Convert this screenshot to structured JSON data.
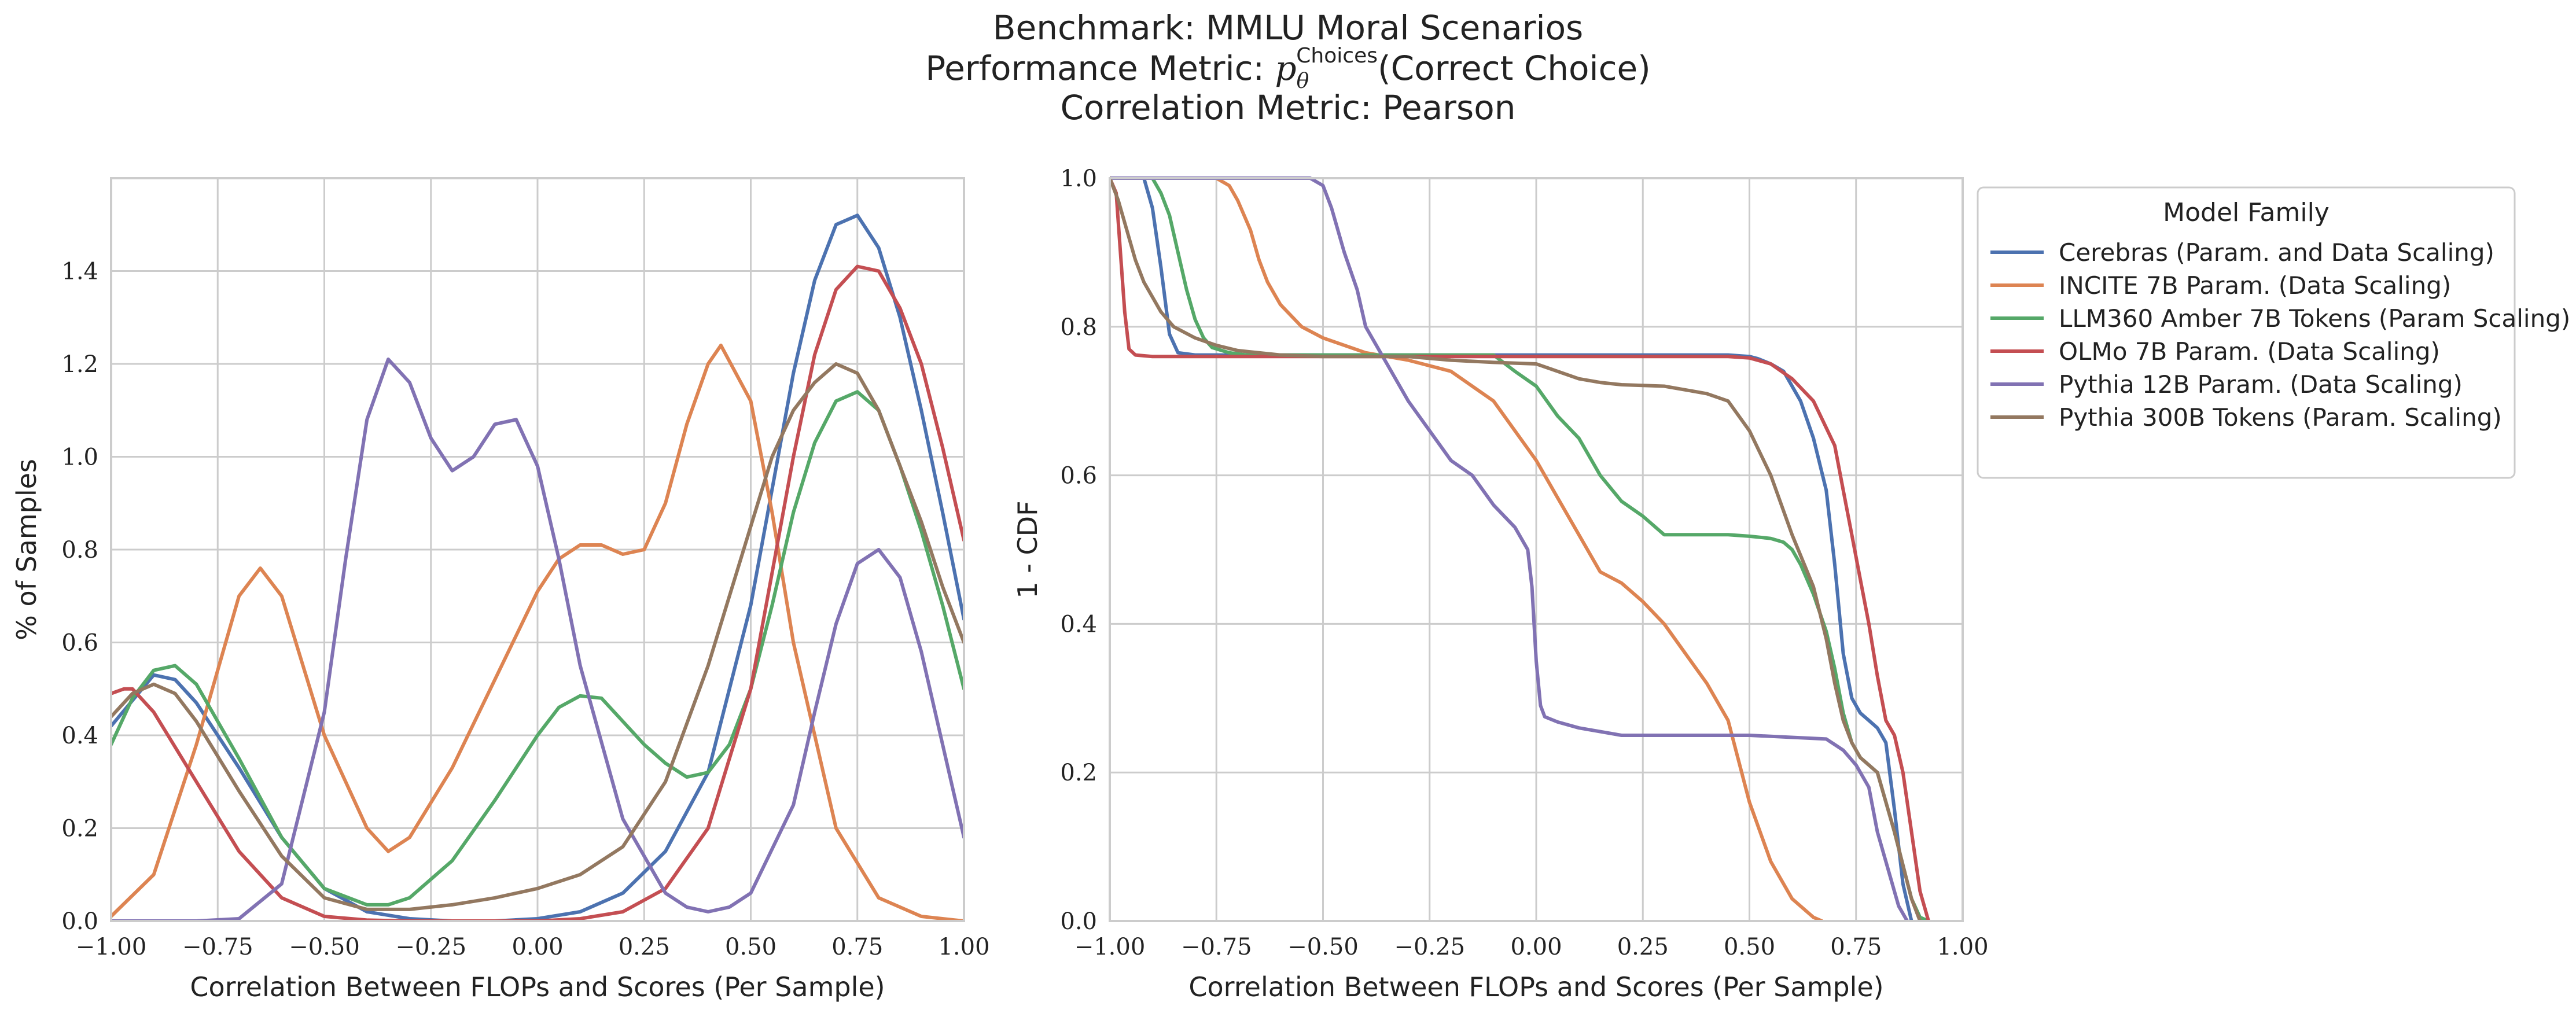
{
  "title": {
    "line1": "Benchmark: MMLU Moral Scenarios",
    "line2_prefix": "Performance Metric: ",
    "line2_symbol": "p",
    "line2_subscript": "θ",
    "line2_superscript": "Choices",
    "line2_suffix": "(Correct Choice)",
    "line3": "Correlation Metric: Pearson"
  },
  "legend": {
    "title": "Model Family",
    "placement": "outside-right"
  },
  "colors": {
    "cerebras": "#4c72b0",
    "incite": "#dd8452",
    "llm360": "#55a868",
    "olmo": "#c44e52",
    "pythia12b": "#8172b3",
    "pythia300b": "#937860"
  },
  "chart_data": [
    {
      "type": "line",
      "xlabel": "Correlation Between FLOPs and Scores (Per Sample)",
      "ylabel": "% of Samples",
      "xlim": [
        -1.0,
        1.0
      ],
      "ylim": [
        0.0,
        1.6
      ],
      "xticks": [
        "−1.00",
        "−0.75",
        "−0.50",
        "−0.25",
        "0.00",
        "0.25",
        "0.50",
        "0.75",
        "1.00"
      ],
      "yticks": [
        "0.0",
        "0.2",
        "0.4",
        "0.6",
        "0.8",
        "1.0",
        "1.2",
        "1.4"
      ],
      "grid": true,
      "series": [
        {
          "name": "Cerebras (Param. and Data Scaling)",
          "color": "#4c72b0",
          "x": [
            -1.0,
            -0.9,
            -0.85,
            -0.8,
            -0.7,
            -0.6,
            -0.5,
            -0.4,
            -0.3,
            -0.2,
            -0.1,
            0.0,
            0.1,
            0.2,
            0.3,
            0.4,
            0.5,
            0.55,
            0.6,
            0.65,
            0.7,
            0.75,
            0.8,
            0.85,
            0.9,
            0.95,
            1.0
          ],
          "y": [
            0.42,
            0.53,
            0.52,
            0.47,
            0.33,
            0.18,
            0.07,
            0.02,
            0.005,
            0.0,
            0.0,
            0.005,
            0.02,
            0.06,
            0.15,
            0.32,
            0.68,
            0.93,
            1.18,
            1.38,
            1.5,
            1.52,
            1.45,
            1.3,
            1.1,
            0.88,
            0.65
          ]
        },
        {
          "name": "INCITE 7B Param. (Data Scaling)",
          "color": "#dd8452",
          "x": [
            -1.0,
            -0.9,
            -0.8,
            -0.7,
            -0.65,
            -0.6,
            -0.5,
            -0.4,
            -0.35,
            -0.3,
            -0.2,
            -0.1,
            0.0,
            0.05,
            0.1,
            0.15,
            0.2,
            0.25,
            0.3,
            0.35,
            0.4,
            0.43,
            0.5,
            0.55,
            0.6,
            0.7,
            0.8,
            0.9,
            1.0
          ],
          "y": [
            0.01,
            0.1,
            0.38,
            0.7,
            0.76,
            0.7,
            0.4,
            0.2,
            0.15,
            0.18,
            0.33,
            0.52,
            0.71,
            0.78,
            0.81,
            0.81,
            0.79,
            0.8,
            0.9,
            1.07,
            1.2,
            1.24,
            1.12,
            0.88,
            0.6,
            0.2,
            0.05,
            0.01,
            0.0
          ]
        },
        {
          "name": "LLM360 Amber 7B Tokens (Param Scaling)",
          "color": "#55a868",
          "x": [
            -1.0,
            -0.95,
            -0.9,
            -0.85,
            -0.8,
            -0.7,
            -0.6,
            -0.5,
            -0.4,
            -0.35,
            -0.3,
            -0.2,
            -0.1,
            0.0,
            0.05,
            0.1,
            0.15,
            0.2,
            0.25,
            0.3,
            0.35,
            0.4,
            0.45,
            0.5,
            0.55,
            0.6,
            0.65,
            0.7,
            0.75,
            0.8,
            0.85,
            0.9,
            0.95,
            1.0
          ],
          "y": [
            0.38,
            0.48,
            0.54,
            0.55,
            0.51,
            0.35,
            0.18,
            0.07,
            0.035,
            0.035,
            0.05,
            0.13,
            0.26,
            0.4,
            0.46,
            0.485,
            0.48,
            0.43,
            0.38,
            0.34,
            0.31,
            0.32,
            0.38,
            0.5,
            0.68,
            0.88,
            1.03,
            1.12,
            1.14,
            1.1,
            0.98,
            0.84,
            0.68,
            0.5
          ]
        },
        {
          "name": "OLMo 7B Param. (Data Scaling)",
          "color": "#c44e52",
          "x": [
            -1.0,
            -0.97,
            -0.95,
            -0.9,
            -0.8,
            -0.7,
            -0.6,
            -0.5,
            -0.4,
            -0.3,
            -0.2,
            -0.1,
            0.0,
            0.1,
            0.2,
            0.3,
            0.4,
            0.5,
            0.55,
            0.6,
            0.65,
            0.7,
            0.75,
            0.8,
            0.85,
            0.9,
            0.95,
            1.0
          ],
          "y": [
            0.49,
            0.5,
            0.5,
            0.45,
            0.3,
            0.15,
            0.05,
            0.01,
            0.002,
            0.0,
            0.0,
            0.0,
            0.0,
            0.005,
            0.02,
            0.07,
            0.2,
            0.5,
            0.75,
            1.0,
            1.22,
            1.36,
            1.41,
            1.4,
            1.32,
            1.2,
            1.02,
            0.82
          ]
        },
        {
          "name": "Pythia 12B Param. (Data Scaling)",
          "color": "#8172b3",
          "x": [
            -1.0,
            -0.8,
            -0.7,
            -0.6,
            -0.5,
            -0.45,
            -0.4,
            -0.35,
            -0.3,
            -0.25,
            -0.2,
            -0.15,
            -0.1,
            -0.05,
            0.0,
            0.05,
            0.1,
            0.2,
            0.3,
            0.35,
            0.4,
            0.45,
            0.5,
            0.6,
            0.65,
            0.7,
            0.75,
            0.8,
            0.85,
            0.9,
            0.95,
            1.0
          ],
          "y": [
            0.0,
            0.0,
            0.005,
            0.08,
            0.45,
            0.78,
            1.08,
            1.21,
            1.16,
            1.04,
            0.97,
            1.0,
            1.07,
            1.08,
            0.98,
            0.78,
            0.55,
            0.22,
            0.06,
            0.03,
            0.02,
            0.03,
            0.06,
            0.25,
            0.45,
            0.64,
            0.77,
            0.8,
            0.74,
            0.58,
            0.38,
            0.18
          ]
        },
        {
          "name": "Pythia 300B Tokens (Param. Scaling)",
          "color": "#937860",
          "x": [
            -1.0,
            -0.95,
            -0.9,
            -0.85,
            -0.8,
            -0.7,
            -0.6,
            -0.5,
            -0.4,
            -0.3,
            -0.2,
            -0.1,
            0.0,
            0.1,
            0.2,
            0.3,
            0.4,
            0.5,
            0.55,
            0.6,
            0.65,
            0.7,
            0.75,
            0.8,
            0.85,
            0.9,
            0.95,
            1.0
          ],
          "y": [
            0.44,
            0.49,
            0.51,
            0.49,
            0.43,
            0.28,
            0.14,
            0.05,
            0.025,
            0.025,
            0.035,
            0.05,
            0.07,
            0.1,
            0.16,
            0.3,
            0.55,
            0.85,
            1.0,
            1.1,
            1.16,
            1.2,
            1.18,
            1.1,
            0.98,
            0.86,
            0.72,
            0.6
          ]
        }
      ]
    },
    {
      "type": "line",
      "xlabel": "Correlation Between FLOPs and Scores (Per Sample)",
      "ylabel": "1 - CDF",
      "xlim": [
        -1.0,
        1.0
      ],
      "ylim": [
        0.0,
        1.0
      ],
      "xticks": [
        "−1.00",
        "−0.75",
        "−0.50",
        "−0.25",
        "0.00",
        "0.25",
        "0.50",
        "0.75",
        "1.00"
      ],
      "yticks": [
        "0.0",
        "0.2",
        "0.4",
        "0.6",
        "0.8",
        "1.0"
      ],
      "grid": true,
      "series": [
        {
          "name": "Cerebras (Param. and Data Scaling)",
          "color": "#4c72b0",
          "x": [
            -1.0,
            -0.92,
            -0.9,
            -0.88,
            -0.86,
            -0.84,
            -0.8,
            -0.5,
            0.0,
            0.45,
            0.5,
            0.52,
            0.55,
            0.58,
            0.6,
            0.62,
            0.65,
            0.68,
            0.7,
            0.72,
            0.74,
            0.76,
            0.78,
            0.8,
            0.82,
            0.84,
            0.86,
            0.88
          ],
          "y": [
            1.0,
            1.0,
            0.96,
            0.88,
            0.79,
            0.765,
            0.762,
            0.762,
            0.762,
            0.762,
            0.76,
            0.757,
            0.75,
            0.74,
            0.72,
            0.7,
            0.65,
            0.58,
            0.48,
            0.36,
            0.3,
            0.28,
            0.27,
            0.26,
            0.24,
            0.15,
            0.05,
            0.0
          ]
        },
        {
          "name": "INCITE 7B Param. (Data Scaling)",
          "color": "#dd8452",
          "x": [
            -1.0,
            -0.75,
            -0.72,
            -0.7,
            -0.67,
            -0.65,
            -0.63,
            -0.6,
            -0.55,
            -0.5,
            -0.4,
            -0.3,
            -0.2,
            -0.15,
            -0.1,
            -0.05,
            0.0,
            0.05,
            0.1,
            0.15,
            0.2,
            0.25,
            0.3,
            0.35,
            0.4,
            0.45,
            0.5,
            0.55,
            0.6,
            0.65,
            0.67
          ],
          "y": [
            1.0,
            1.0,
            0.99,
            0.97,
            0.93,
            0.89,
            0.86,
            0.83,
            0.8,
            0.785,
            0.765,
            0.755,
            0.74,
            0.72,
            0.7,
            0.66,
            0.62,
            0.57,
            0.52,
            0.47,
            0.455,
            0.43,
            0.4,
            0.36,
            0.32,
            0.27,
            0.16,
            0.08,
            0.03,
            0.005,
            0.0
          ]
        },
        {
          "name": "LLM360 Amber 7B Tokens (Param Scaling)",
          "color": "#55a868",
          "x": [
            -1.0,
            -0.9,
            -0.88,
            -0.86,
            -0.84,
            -0.82,
            -0.8,
            -0.78,
            -0.76,
            -0.72,
            -0.68,
            -0.6,
            -0.5,
            -0.1,
            -0.05,
            0.0,
            0.05,
            0.1,
            0.15,
            0.2,
            0.25,
            0.3,
            0.45,
            0.5,
            0.55,
            0.58,
            0.6,
            0.62,
            0.65,
            0.68,
            0.7,
            0.72,
            0.74,
            0.76,
            0.78,
            0.8,
            0.84,
            0.88,
            0.9,
            0.92
          ],
          "y": [
            1.0,
            1.0,
            0.98,
            0.95,
            0.9,
            0.85,
            0.81,
            0.785,
            0.772,
            0.765,
            0.762,
            0.762,
            0.762,
            0.762,
            0.74,
            0.72,
            0.68,
            0.65,
            0.6,
            0.565,
            0.545,
            0.52,
            0.52,
            0.518,
            0.515,
            0.51,
            0.5,
            0.48,
            0.44,
            0.39,
            0.34,
            0.28,
            0.24,
            0.22,
            0.21,
            0.2,
            0.12,
            0.03,
            0.005,
            0.0
          ]
        },
        {
          "name": "OLMo 7B Param. (Data Scaling)",
          "color": "#c44e52",
          "x": [
            -1.0,
            -0.985,
            -0.975,
            -0.965,
            -0.955,
            -0.94,
            -0.9,
            0.0,
            0.45,
            0.5,
            0.55,
            0.6,
            0.65,
            0.7,
            0.72,
            0.74,
            0.76,
            0.78,
            0.8,
            0.82,
            0.84,
            0.86,
            0.88,
            0.9,
            0.92
          ],
          "y": [
            1.0,
            0.98,
            0.9,
            0.82,
            0.77,
            0.762,
            0.76,
            0.76,
            0.76,
            0.758,
            0.75,
            0.73,
            0.7,
            0.64,
            0.58,
            0.52,
            0.46,
            0.4,
            0.33,
            0.27,
            0.25,
            0.2,
            0.12,
            0.04,
            0.0
          ]
        },
        {
          "name": "Pythia 12B Param. (Data Scaling)",
          "color": "#8172b3",
          "x": [
            -1.0,
            -0.53,
            -0.5,
            -0.48,
            -0.45,
            -0.42,
            -0.4,
            -0.35,
            -0.3,
            -0.25,
            -0.2,
            -0.15,
            -0.1,
            -0.05,
            -0.02,
            -0.01,
            0.0,
            0.01,
            0.02,
            0.05,
            0.1,
            0.2,
            0.5,
            0.68,
            0.72,
            0.75,
            0.78,
            0.8,
            0.83,
            0.85,
            0.87
          ],
          "y": [
            1.0,
            1.0,
            0.99,
            0.96,
            0.9,
            0.85,
            0.8,
            0.75,
            0.7,
            0.66,
            0.62,
            0.6,
            0.56,
            0.53,
            0.5,
            0.45,
            0.35,
            0.29,
            0.275,
            0.268,
            0.26,
            0.25,
            0.25,
            0.245,
            0.23,
            0.21,
            0.18,
            0.12,
            0.06,
            0.02,
            0.0
          ]
        },
        {
          "name": "Pythia 300B Tokens (Param. Scaling)",
          "color": "#937860",
          "x": [
            -1.0,
            -0.98,
            -0.96,
            -0.94,
            -0.92,
            -0.9,
            -0.88,
            -0.85,
            -0.8,
            -0.75,
            -0.7,
            -0.6,
            -0.5,
            -0.3,
            -0.2,
            -0.1,
            0.0,
            0.05,
            0.1,
            0.15,
            0.2,
            0.3,
            0.35,
            0.4,
            0.45,
            0.5,
            0.55,
            0.6,
            0.65,
            0.68,
            0.7,
            0.72,
            0.74,
            0.76,
            0.78,
            0.8,
            0.84,
            0.88,
            0.9
          ],
          "y": [
            1.0,
            0.97,
            0.93,
            0.89,
            0.86,
            0.84,
            0.82,
            0.8,
            0.785,
            0.775,
            0.768,
            0.762,
            0.76,
            0.76,
            0.755,
            0.752,
            0.75,
            0.74,
            0.73,
            0.725,
            0.722,
            0.72,
            0.715,
            0.71,
            0.7,
            0.66,
            0.6,
            0.52,
            0.45,
            0.38,
            0.32,
            0.27,
            0.24,
            0.22,
            0.21,
            0.2,
            0.12,
            0.03,
            0.0
          ]
        }
      ]
    }
  ]
}
